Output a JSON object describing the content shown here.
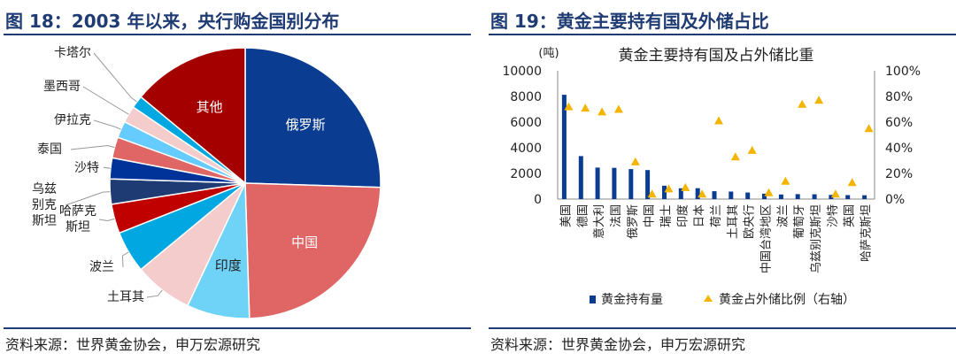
{
  "left": {
    "title": "图 18：2003 年以来，央行购金国别分布",
    "source": "资料来源：世界黄金协会，申万宏源研究"
  },
  "right": {
    "title": "图 19：黄金主要持有国及外储占比",
    "source": "资料来源：世界黄金协会，申万宏源研究"
  },
  "chart_data": [
    {
      "type": "pie",
      "slices": [
        {
          "label": "俄罗斯",
          "value": 25.5,
          "color": "#0a3d91",
          "label_inside": true,
          "label_color": "#ffffff"
        },
        {
          "label": "中国",
          "value": 24.0,
          "color": "#e06666",
          "label_inside": true,
          "label_color": "#ffffff"
        },
        {
          "label": "印度",
          "value": 7.5,
          "color": "#6fd3f7",
          "label_inside": true,
          "label_color": "#222222"
        },
        {
          "label": "土耳其",
          "value": 7.0,
          "color": "#f4cccc",
          "label_inside": false
        },
        {
          "label": "波兰",
          "value": 5.0,
          "color": "#00a7e1",
          "label_inside": false
        },
        {
          "label": "哈萨克斯坦",
          "value": 3.5,
          "color": "#c00000",
          "label_inside": false
        },
        {
          "label": "乌兹别克斯坦",
          "value": 3.0,
          "color": "#1f3b73",
          "label_inside": false
        },
        {
          "label": "沙特",
          "value": 2.5,
          "color": "#003399",
          "label_inside": false
        },
        {
          "label": "泰国",
          "value": 2.5,
          "color": "#e06666",
          "label_inside": false
        },
        {
          "label": "伊拉克",
          "value": 2.0,
          "color": "#66ccff",
          "label_inside": false
        },
        {
          "label": "墨西哥",
          "value": 2.0,
          "color": "#f4cccc",
          "label_inside": false
        },
        {
          "label": "卡塔尔",
          "value": 1.5,
          "color": "#00a7e1",
          "label_inside": false
        },
        {
          "label": "其他",
          "value": 14.0,
          "color": "#a50000",
          "label_inside": true,
          "label_color": "#ffffff"
        }
      ]
    },
    {
      "type": "bar",
      "title": "黄金主要持有国及占外储比重",
      "ylabel": "(吨)",
      "ylim": [
        0,
        10000
      ],
      "y_ticks": [
        "0",
        "2000",
        "4000",
        "6000",
        "8000",
        "10000"
      ],
      "y2lim": [
        0,
        100
      ],
      "y2_ticks": [
        "0%",
        "20%",
        "40%",
        "60%",
        "80%",
        "100%"
      ],
      "categories": [
        "美国",
        "德国",
        "意大利",
        "法国",
        "俄罗斯",
        "中国",
        "瑞士",
        "印度",
        "日本",
        "荷兰",
        "土耳其",
        "欧央行",
        "中国台湾地区",
        "波兰",
        "葡萄牙",
        "乌兹别克斯坦",
        "沙特",
        "英国",
        "哈萨克斯坦"
      ],
      "series": [
        {
          "name": "黄金持有量",
          "kind": "bar",
          "color": "#0a3d91",
          "values": [
            8133,
            3352,
            2452,
            2437,
            2336,
            2264,
            1040,
            840,
            846,
            612,
            585,
            507,
            424,
            360,
            383,
            375,
            323,
            310,
            300
          ]
        },
        {
          "name": "黄金占外储比例（右轴）",
          "kind": "triangle",
          "color": "#f4b400",
          "axis": "right",
          "values": [
            72,
            71,
            68,
            70,
            29,
            4,
            8,
            9,
            4,
            61,
            33,
            38,
            5,
            14,
            74,
            77,
            4,
            13,
            55
          ]
        }
      ],
      "legend_position": "bottom"
    }
  ]
}
